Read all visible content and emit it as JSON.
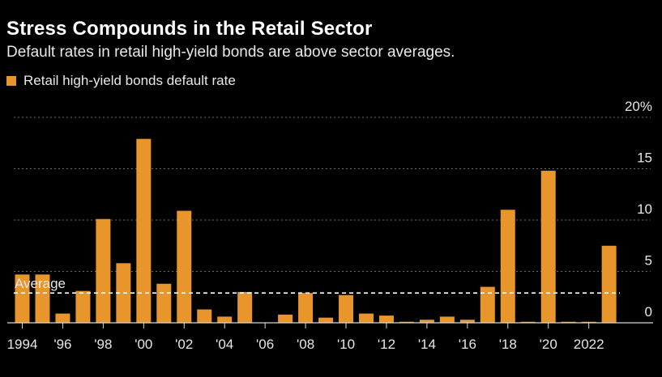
{
  "header": {
    "title": "Stress Compounds in the Retail Sector",
    "subtitle": "Default rates in retail high-yield bonds are above sector averages."
  },
  "colors": {
    "background": "#000000",
    "bar": "#e8952b",
    "grid": "#6a6a6a",
    "average_line": "#ffffff",
    "text": "#e6e6e6"
  },
  "chart_data": {
    "type": "bar",
    "title": "Stress Compounds in the Retail Sector",
    "subtitle": "Default rates in retail high-yield bonds are above sector averages.",
    "series": [
      {
        "name": "Retail high-yield bonds default rate",
        "values": [
          4.7,
          4.7,
          0.9,
          3.1,
          10.1,
          5.8,
          17.9,
          3.8,
          10.9,
          1.3,
          0.6,
          3.0,
          0.0,
          0.8,
          2.9,
          0.5,
          2.7,
          0.9,
          0.7,
          0.1,
          0.3,
          0.6,
          0.3,
          3.5,
          11.0,
          0.1,
          14.8,
          0.1,
          0.1,
          7.5
        ]
      }
    ],
    "x": [
      1994,
      1995,
      1996,
      1997,
      1998,
      1999,
      2000,
      2001,
      2002,
      2003,
      2004,
      2005,
      2006,
      2007,
      2008,
      2009,
      2010,
      2011,
      2012,
      2013,
      2014,
      2015,
      2016,
      2017,
      2018,
      2019,
      2020,
      2021,
      2022,
      2023
    ],
    "tick_labels": [
      "1994",
      "'96",
      "'98",
      "'00",
      "'02",
      "'04",
      "'06",
      "'08",
      "'10",
      "'12",
      "'14",
      "'16",
      "'18",
      "'20",
      "2022"
    ],
    "tick_years": [
      1994,
      1996,
      1998,
      2000,
      2002,
      2004,
      2006,
      2008,
      2010,
      2012,
      2014,
      2016,
      2018,
      2020,
      2022
    ],
    "y_ticks": [
      {
        "value": 20,
        "label": "20%"
      },
      {
        "value": 15,
        "label": "15"
      },
      {
        "value": 10,
        "label": "10"
      },
      {
        "value": 5,
        "label": "5"
      },
      {
        "value": 0,
        "label": "0"
      }
    ],
    "ylim": [
      0,
      20
    ],
    "grid": true,
    "average": {
      "label": "Average",
      "value": 2.9
    },
    "legend_position": "top-left"
  }
}
